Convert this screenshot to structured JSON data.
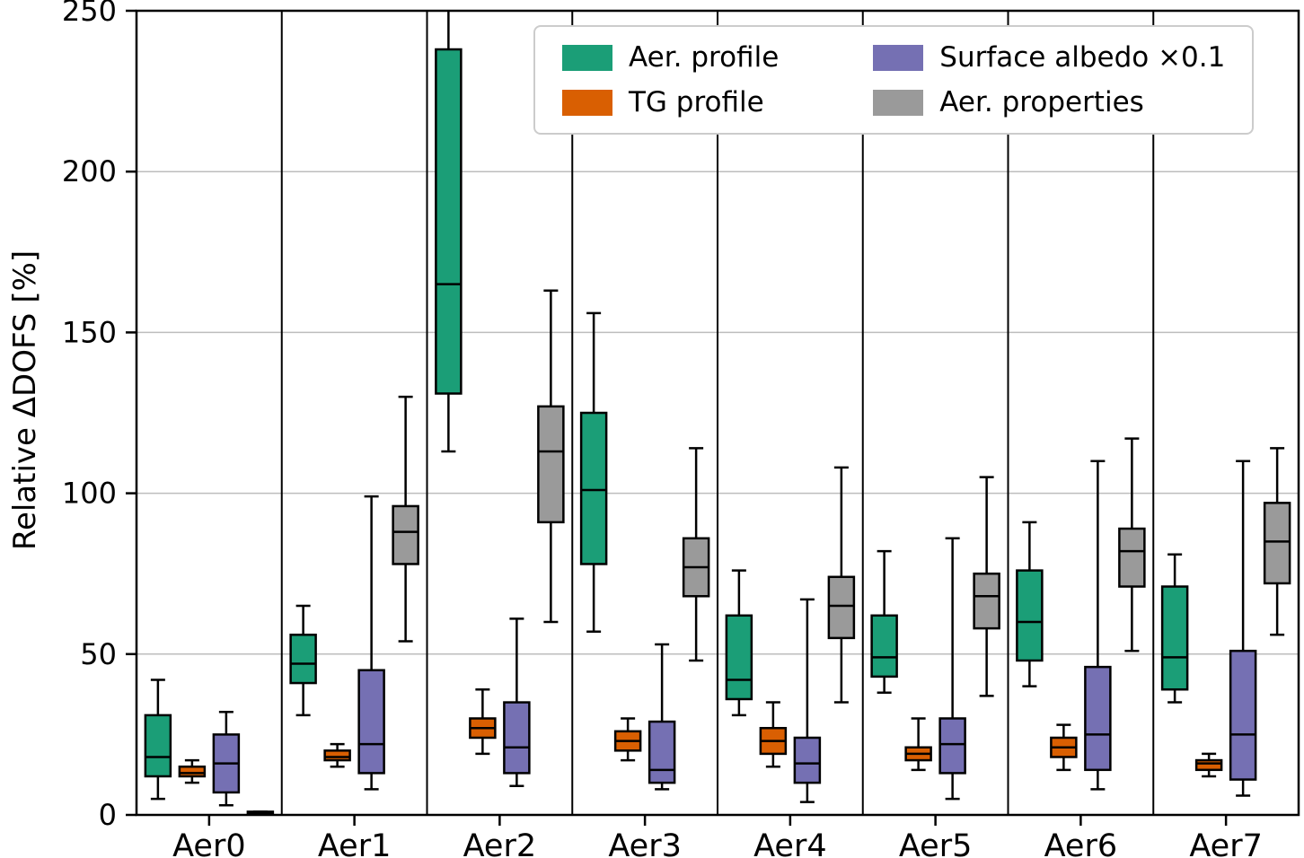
{
  "chart_data": {
    "type": "boxplot",
    "title": "",
    "xlabel": "",
    "ylabel": "Relative ΔDOFS [%]",
    "ylim": [
      0,
      250
    ],
    "yticks": [
      0,
      50,
      100,
      150,
      200,
      250
    ],
    "grid": "horizontal",
    "group_separators": true,
    "categories": [
      "Aer0",
      "Aer1",
      "Aer2",
      "Aer3",
      "Aer4",
      "Aer5",
      "Aer6",
      "Aer7"
    ],
    "legend": {
      "position": "upper right",
      "columns": 2,
      "entries": [
        {
          "label": "Aer. profile",
          "color": "#1b9e77"
        },
        {
          "label": "TG profile",
          "color": "#d95f02"
        },
        {
          "label": "Surface albedo ×0.1",
          "color": "#7570b3"
        },
        {
          "label": "Aer. properties",
          "color": "#9a9a9a"
        }
      ]
    },
    "series": [
      {
        "name": "Aer. profile",
        "color": "#1b9e77",
        "boxes": [
          {
            "category": "Aer0",
            "low": 5,
            "q1": 12,
            "median": 18,
            "q3": 31,
            "high": 42
          },
          {
            "category": "Aer1",
            "low": 31,
            "q1": 41,
            "median": 47,
            "q3": 56,
            "high": 65
          },
          {
            "category": "Aer2",
            "low": 113,
            "q1": 131,
            "median": 165,
            "q3": 238,
            "high": 253
          },
          {
            "category": "Aer3",
            "low": 57,
            "q1": 78,
            "median": 101,
            "q3": 125,
            "high": 156
          },
          {
            "category": "Aer4",
            "low": 31,
            "q1": 36,
            "median": 42,
            "q3": 62,
            "high": 76
          },
          {
            "category": "Aer5",
            "low": 38,
            "q1": 43,
            "median": 49,
            "q3": 62,
            "high": 82
          },
          {
            "category": "Aer6",
            "low": 40,
            "q1": 48,
            "median": 60,
            "q3": 76,
            "high": 91
          },
          {
            "category": "Aer7",
            "low": 35,
            "q1": 39,
            "median": 49,
            "q3": 71,
            "high": 81
          }
        ]
      },
      {
        "name": "TG profile",
        "color": "#d95f02",
        "boxes": [
          {
            "category": "Aer0",
            "low": 10,
            "q1": 12,
            "median": 13,
            "q3": 15,
            "high": 17
          },
          {
            "category": "Aer1",
            "low": 15,
            "q1": 17,
            "median": 18,
            "q3": 20,
            "high": 22
          },
          {
            "category": "Aer2",
            "low": 19,
            "q1": 24,
            "median": 27,
            "q3": 30,
            "high": 39
          },
          {
            "category": "Aer3",
            "low": 17,
            "q1": 20,
            "median": 23,
            "q3": 26,
            "high": 30
          },
          {
            "category": "Aer4",
            "low": 15,
            "q1": 19,
            "median": 23,
            "q3": 27,
            "high": 35
          },
          {
            "category": "Aer5",
            "low": 14,
            "q1": 17,
            "median": 19,
            "q3": 21,
            "high": 30
          },
          {
            "category": "Aer6",
            "low": 14,
            "q1": 18,
            "median": 21,
            "q3": 24,
            "high": 28
          },
          {
            "category": "Aer7",
            "low": 12,
            "q1": 14,
            "median": 16,
            "q3": 17,
            "high": 19
          }
        ]
      },
      {
        "name": "Surface albedo ×0.1",
        "color": "#7570b3",
        "boxes": [
          {
            "category": "Aer0",
            "low": 3,
            "q1": 7,
            "median": 16,
            "q3": 25,
            "high": 32
          },
          {
            "category": "Aer1",
            "low": 8,
            "q1": 13,
            "median": 22,
            "q3": 45,
            "high": 99
          },
          {
            "category": "Aer2",
            "low": 9,
            "q1": 13,
            "median": 21,
            "q3": 35,
            "high": 61
          },
          {
            "category": "Aer3",
            "low": 8,
            "q1": 10,
            "median": 14,
            "q3": 29,
            "high": 53
          },
          {
            "category": "Aer4",
            "low": 4,
            "q1": 10,
            "median": 16,
            "q3": 24,
            "high": 67
          },
          {
            "category": "Aer5",
            "low": 5,
            "q1": 13,
            "median": 22,
            "q3": 30,
            "high": 86
          },
          {
            "category": "Aer6",
            "low": 8,
            "q1": 14,
            "median": 25,
            "q3": 46,
            "high": 110
          },
          {
            "category": "Aer7",
            "low": 6,
            "q1": 11,
            "median": 25,
            "q3": 51,
            "high": 110
          }
        ]
      },
      {
        "name": "Aer. properties",
        "color": "#9a9a9a",
        "boxes": [
          {
            "category": "Aer0",
            "low": 0,
            "q1": 0,
            "median": 0.5,
            "q3": 1,
            "high": 1
          },
          {
            "category": "Aer1",
            "low": 54,
            "q1": 78,
            "median": 88,
            "q3": 96,
            "high": 130
          },
          {
            "category": "Aer2",
            "low": 60,
            "q1": 91,
            "median": 113,
            "q3": 127,
            "high": 163
          },
          {
            "category": "Aer3",
            "low": 48,
            "q1": 68,
            "median": 77,
            "q3": 86,
            "high": 114
          },
          {
            "category": "Aer4",
            "low": 35,
            "q1": 55,
            "median": 65,
            "q3": 74,
            "high": 108
          },
          {
            "category": "Aer5",
            "low": 37,
            "q1": 58,
            "median": 68,
            "q3": 75,
            "high": 105
          },
          {
            "category": "Aer6",
            "low": 51,
            "q1": 71,
            "median": 82,
            "q3": 89,
            "high": 117
          },
          {
            "category": "Aer7",
            "low": 56,
            "q1": 72,
            "median": 85,
            "q3": 97,
            "high": 114
          }
        ]
      }
    ]
  }
}
